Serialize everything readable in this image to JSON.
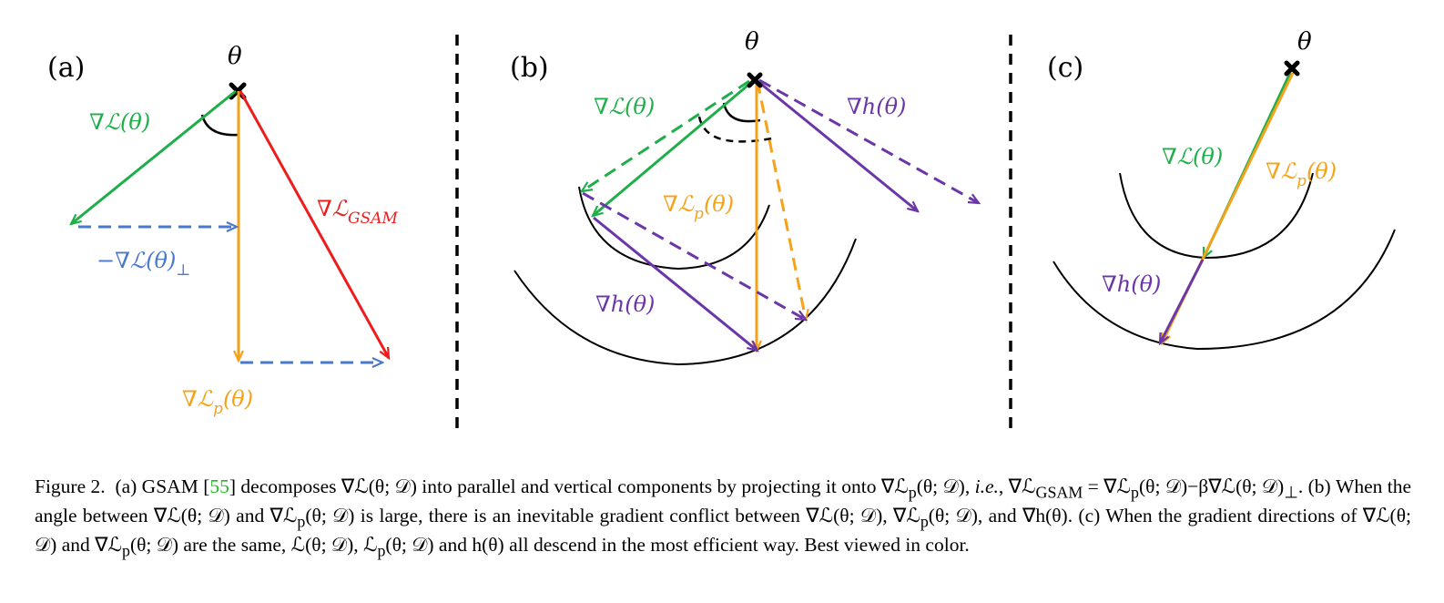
{
  "figure": {
    "panels": [
      {
        "id": "a",
        "label": "(a)"
      },
      {
        "id": "b",
        "label": "(b)"
      },
      {
        "id": "c",
        "label": "(c)"
      }
    ],
    "theta": "θ",
    "vectors": {
      "grad_L": "∇ℒ(θ)",
      "neg_grad_L_perp": "−∇ℒ(θ)",
      "perp_sub": "⊥",
      "grad_Lp_main": "∇ℒ",
      "grad_Lp_sub": "p",
      "grad_Lp_tail": "(θ)",
      "grad_LGSAM_main": "∇ℒ",
      "grad_LGSAM_sub": "GSAM",
      "grad_h": "∇h(θ)"
    },
    "colors": {
      "green": "#1fae4a",
      "orange": "#f5a21a",
      "red": "#ee1c1c",
      "blue": "#4a78cc",
      "purple": "#6a36a8",
      "divider": "#000000"
    }
  },
  "caption": {
    "fig_label": "Figure 2.",
    "citation": "55",
    "text_pre_cite": "(a) GSAM [",
    "text_1": "] decomposes ∇ℒ(θ; 𝒟) into parallel and vertical components by projecting it onto ∇ℒ",
    "text_2": "(θ; 𝒟), ",
    "ie": "i.e.",
    "text_3": ", ∇ℒ",
    "text_4": " = ∇ℒ",
    "text_5": "(θ; 𝒟)−β∇ℒ(θ; 𝒟)",
    "text_6": ". (b) When the angle between ∇ℒ(θ; 𝒟) and ∇ℒ",
    "text_7": "(θ; 𝒟) is large, there is an inevitable gradient conflict between ∇ℒ(θ; 𝒟), ∇ℒ",
    "text_8": "(θ; 𝒟), and ∇h(θ). (c) When the gradient directions of ∇ℒ(θ; 𝒟) and ∇ℒ",
    "text_9": "(θ; 𝒟) are the same, ℒ(θ; 𝒟), ℒ",
    "text_10": "(θ; 𝒟) and h(θ) all descend in the most efficient way. Best viewed in color.",
    "sub_p": "p",
    "sub_GSAM": "GSAM",
    "sub_perp": "⊥"
  }
}
